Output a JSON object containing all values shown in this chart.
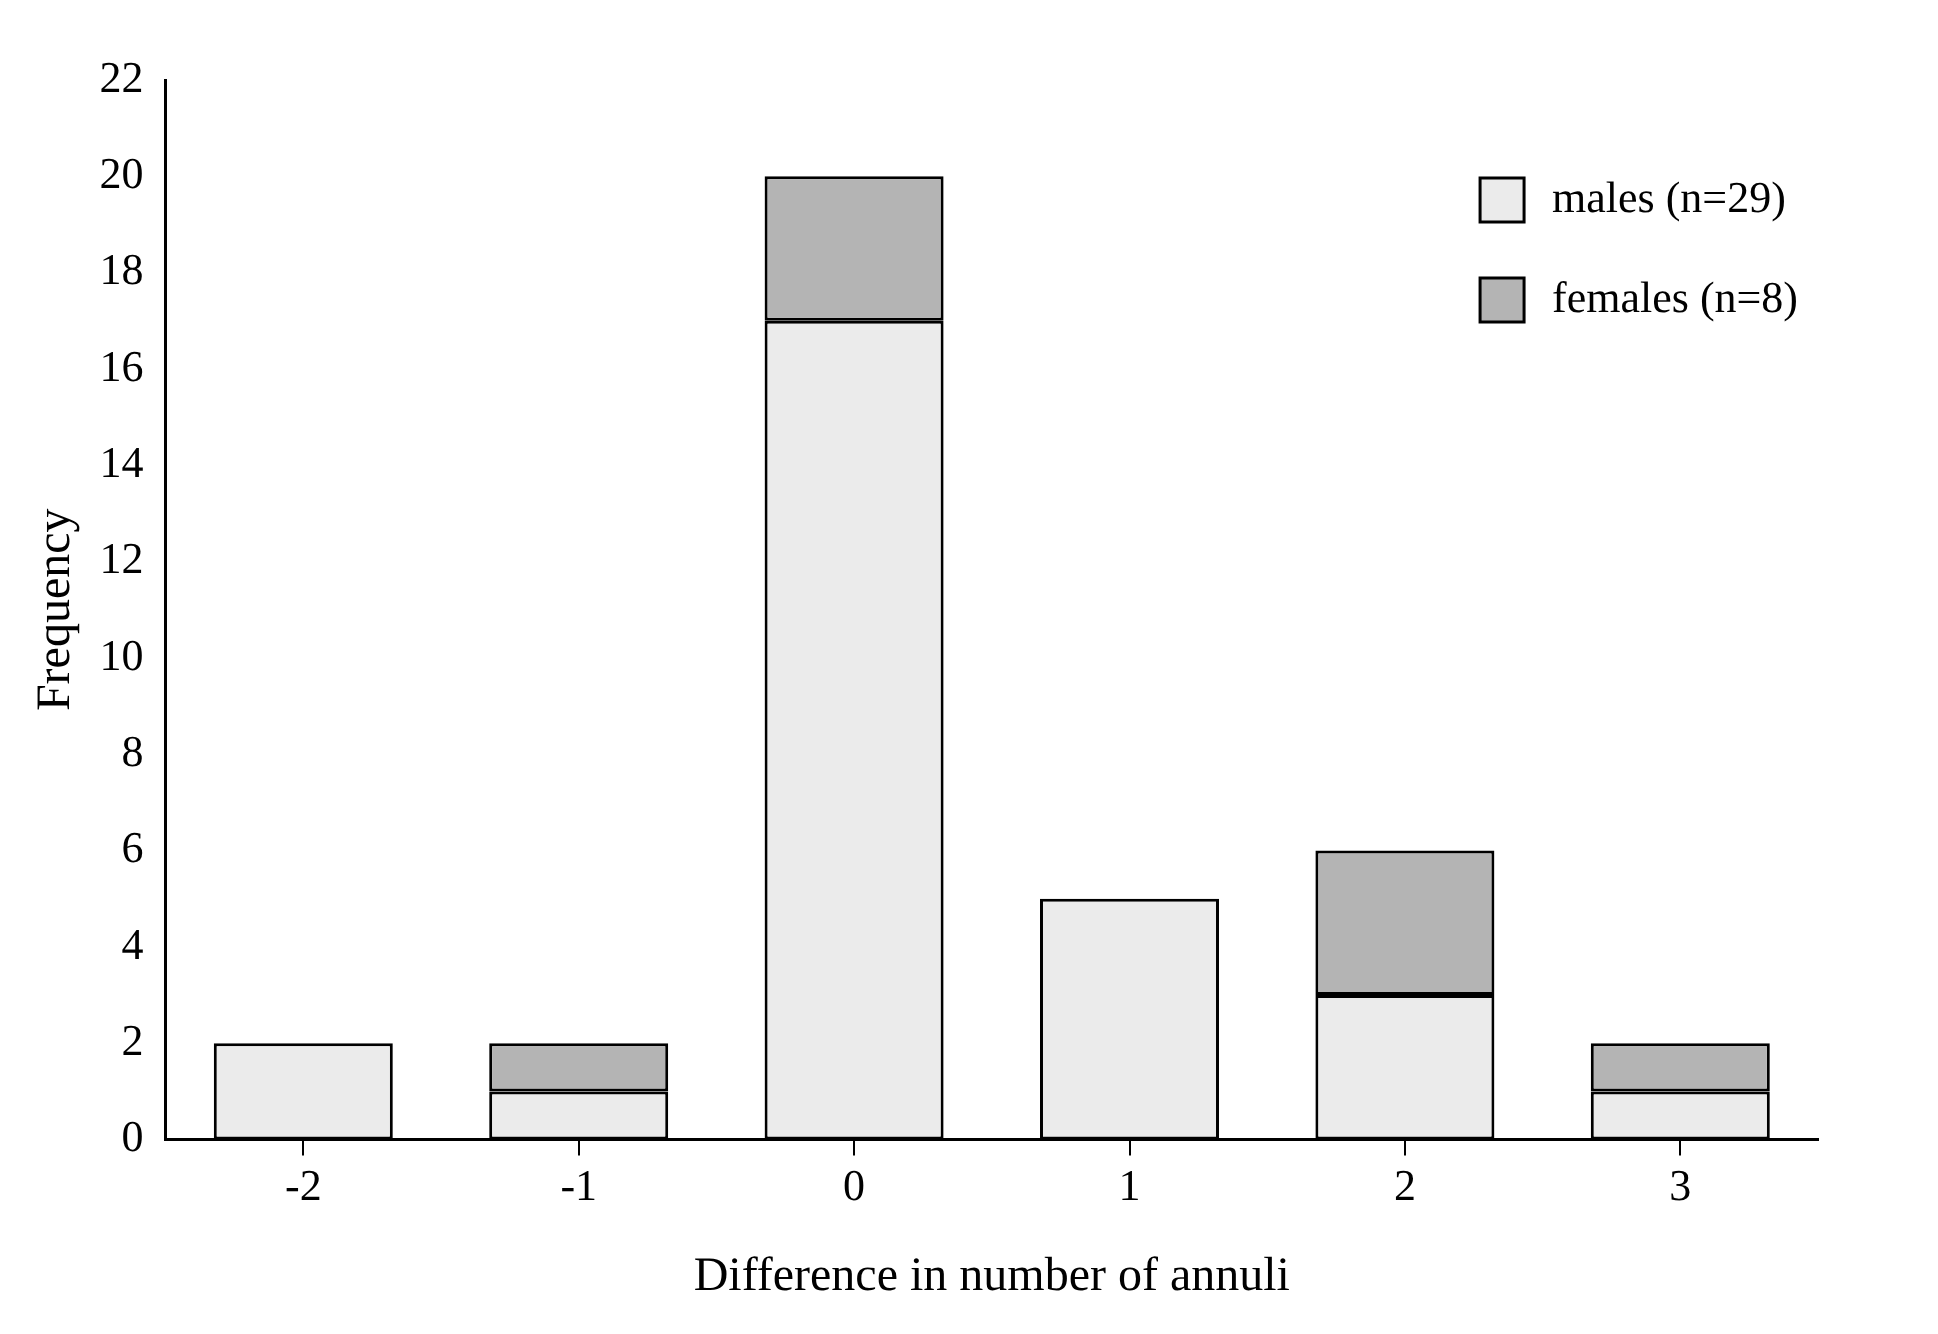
{
  "chart_data": {
    "type": "bar",
    "stacked": true,
    "xlabel": "Difference in number of annuli",
    "ylabel": "Frequency",
    "categories": [
      "-2",
      "-1",
      "0",
      "1",
      "2",
      "3"
    ],
    "series": [
      {
        "name": "males (n=29)",
        "color": "#ebebeb",
        "values": [
          2,
          1,
          17,
          5,
          3,
          1
        ]
      },
      {
        "name": "females (n=8)",
        "color": "#b4b4b4",
        "values": [
          0,
          1,
          3,
          0,
          3,
          1
        ]
      }
    ],
    "ylim": [
      0,
      22
    ],
    "yticks": [
      0,
      2,
      4,
      6,
      8,
      10,
      12,
      14,
      16,
      18,
      20,
      22
    ],
    "grid": false,
    "legend": "top right"
  }
}
